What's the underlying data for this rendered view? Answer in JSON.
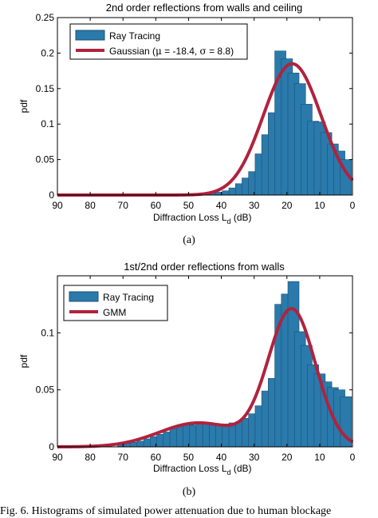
{
  "colors": {
    "bar": "#2a7aac",
    "bar_edge": "#1d4f72",
    "curve": "#b0233d",
    "axis": "#000000"
  },
  "caption": "Fig. 6. Histograms of simulated power attenuation due to human blockage",
  "chart_data": [
    {
      "type": "bar",
      "title": "2nd order reflections from walls and ceiling",
      "subfigure": "(a)",
      "xlabel_main": "Diffraction Loss L",
      "xlabel_sub": "d",
      "xlabel_unit": " (dB)",
      "ylabel": "pdf",
      "xlim": [
        90,
        0
      ],
      "x_reversed": true,
      "ylim": [
        0,
        0.25
      ],
      "xticks": [
        90,
        80,
        70,
        60,
        50,
        40,
        30,
        20,
        10,
        0
      ],
      "yticks": [
        0,
        0.05,
        0.1,
        0.15,
        0.2,
        0.25
      ],
      "ytick_labels": [
        "0",
        "0.05",
        "0.1",
        "0.15",
        "0.2",
        "0.25"
      ],
      "grid": false,
      "legend_position": "top-left",
      "legend": [
        {
          "kind": "bar",
          "label": "Ray Tracing"
        },
        {
          "kind": "line",
          "label_pre": "Gaussian (",
          "mu_sym": "μ",
          "label_mid": " = -18.4, ",
          "sigma_sym": "σ",
          "label_post": " = 8.8)"
        }
      ],
      "bar_width": 3.4,
      "bars": {
        "x": [
          44,
          42,
          40,
          38,
          36,
          34,
          32,
          30,
          28,
          26,
          24,
          22,
          20,
          18,
          16,
          14,
          12,
          10,
          8,
          6,
          4,
          2
        ],
        "values": [
          0.002,
          0.003,
          0.004,
          0.006,
          0.01,
          0.016,
          0.024,
          0.033,
          0.058,
          0.085,
          0.116,
          0.203,
          0.192,
          0.172,
          0.157,
          0.128,
          0.104,
          0.103,
          0.088,
          0.072,
          0.062,
          0.05
        ]
      },
      "curve": {
        "kind": "gaussian",
        "peak_x": 18.4,
        "sigma": 8.8,
        "peak_y": 0.185,
        "baseline": 0
      }
    },
    {
      "type": "bar",
      "title": "1st/2nd order reflections from walls",
      "subfigure": "(b)",
      "xlabel_main": "Diffraction Loss L",
      "xlabel_sub": "d",
      "xlabel_unit": " (dB)",
      "ylabel": "pdf",
      "xlim": [
        90,
        0
      ],
      "x_reversed": true,
      "ylim": [
        0,
        0.15
      ],
      "xticks": [
        90,
        80,
        70,
        60,
        50,
        40,
        30,
        20,
        10,
        0
      ],
      "yticks": [
        0,
        0.05,
        0.1
      ],
      "ytick_labels": [
        "0",
        "0.05",
        "0.1"
      ],
      "grid": false,
      "legend_position": "top-left",
      "legend": [
        {
          "kind": "bar",
          "label": "Ray Tracing"
        },
        {
          "kind": "line",
          "label": "GMM"
        }
      ],
      "bar_width": 3.4,
      "bars": {
        "x": [
          70,
          68,
          66,
          64,
          62,
          60,
          58,
          56,
          54,
          52,
          50,
          48,
          46,
          44,
          42,
          40,
          38,
          36,
          34,
          32,
          30,
          28,
          26,
          24,
          22,
          20,
          18,
          16,
          14,
          12,
          10,
          8,
          6,
          4,
          2
        ],
        "values": [
          0.002,
          0.003,
          0.004,
          0.005,
          0.007,
          0.009,
          0.011,
          0.013,
          0.016,
          0.018,
          0.02,
          0.019,
          0.02,
          0.021,
          0.02,
          0.019,
          0.02,
          0.021,
          0.022,
          0.025,
          0.029,
          0.036,
          0.049,
          0.06,
          0.125,
          0.134,
          0.145,
          0.101,
          0.089,
          0.072,
          0.064,
          0.057,
          0.052,
          0.05,
          0.044
        ]
      },
      "curve": {
        "kind": "gmm",
        "components": [
          {
            "center": 18.5,
            "sigma": 7.2,
            "peak": 0.12
          },
          {
            "center": 47,
            "sigma": 12,
            "peak": 0.021
          }
        ]
      }
    }
  ]
}
